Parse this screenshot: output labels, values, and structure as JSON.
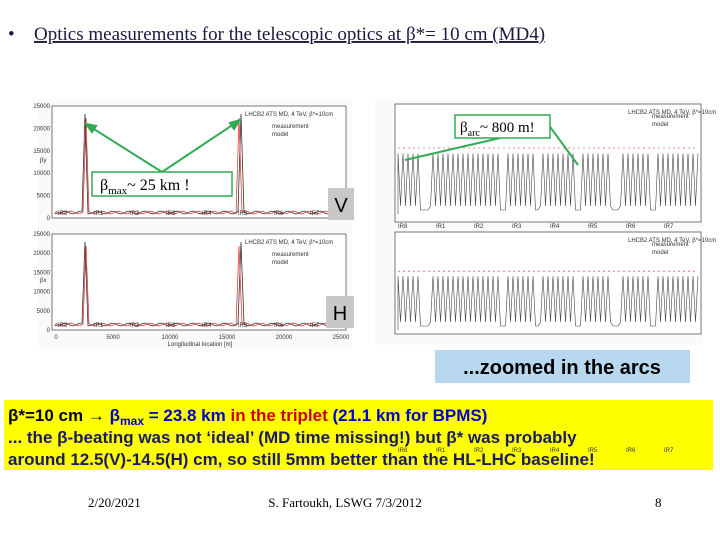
{
  "header": {
    "bullet": "•",
    "title": "Optics measurements for the telescopic optics at β*= 10 cm (MD4)"
  },
  "left_plots": {
    "title": "LHCB2 ATS MD, 4 TeV, β*=10cm",
    "yticks": [
      "25000",
      "20000",
      "15000",
      "10000",
      "5000",
      "0"
    ],
    "xticks": [
      "0",
      "5000",
      "10000",
      "15000",
      "20000",
      "25000"
    ],
    "ir_labels": [
      "IR8",
      "IR1",
      "IR2",
      "IR3",
      "IR4",
      "IR5",
      "IR6",
      "IR7"
    ],
    "legend": [
      "measurement",
      "model"
    ],
    "xlabel": "Longitudinal location [m]",
    "ylabels": [
      "βy",
      "βx"
    ]
  },
  "right_plots": {
    "title": "LHCB2 ATS MD, 4 TeV, β*=10cm",
    "ir_labels": [
      "IR8",
      "IR1",
      "IR2",
      "IR3",
      "IR4",
      "IR5",
      "IR6",
      "IR7"
    ],
    "legend": [
      "measurement",
      "model"
    ]
  },
  "callouts": {
    "beta_max": {
      "symbol": "β",
      "sub": "max",
      "text": "~ 25 km !"
    },
    "beta_arc": {
      "symbol": "β",
      "sub": "arc",
      "text": "~ 800 m!"
    }
  },
  "plane_labels": {
    "vertical": "V",
    "horizontal": "H"
  },
  "zoom_caption": "...zoomed in the arcs",
  "summary": [
    [
      {
        "text": "β*=10 cm → ",
        "color": "#000000"
      },
      {
        "text": "β",
        "color": "#0000cc"
      },
      {
        "text": "max",
        "color": "#0000cc",
        "sub": true
      },
      {
        "text": " = 23.8 km ",
        "color": "#0000cc"
      },
      {
        "text": "in the triplet ",
        "color": "#cc0000"
      },
      {
        "text": "(21.1 km for BPMS)",
        "color": "#0000cc"
      }
    ],
    [
      {
        "text": "... the β-beating was not ‘ideal’ (MD time missing!) but β* was probably",
        "color": "#1a1a66"
      }
    ],
    [
      {
        "text": "around 12.5(V)-14.5(H) cm, so still  5mm better than the HL-LHC baseline!",
        "color": "#1a1a66"
      }
    ]
  ],
  "footer": {
    "date": "2/20/2021",
    "author": "S. Fartoukh, LSWG 7/3/2012",
    "page": "8"
  }
}
